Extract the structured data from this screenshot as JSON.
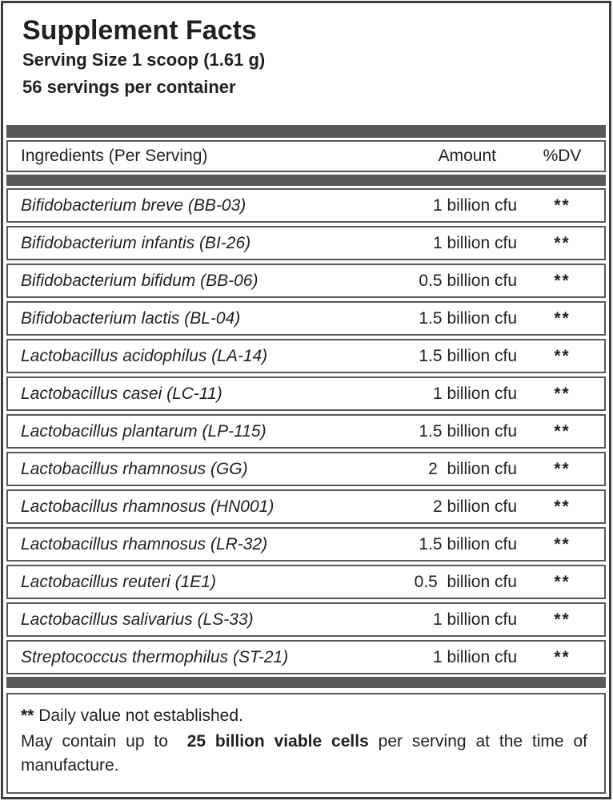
{
  "label": {
    "title": "Supplement Facts",
    "serving_size": "Serving Size 1 scoop (1.61 g)",
    "servings_per_container": "56 servings per container"
  },
  "table": {
    "headers": {
      "ingredient": "Ingredients (Per Serving)",
      "amount": "Amount",
      "dv": "%DV"
    },
    "rows": [
      {
        "name": "Bifidobacterium breve (BB-03)",
        "amount": "1 billion cfu",
        "dv": "**"
      },
      {
        "name": "Bifidobacterium infantis (BI-26)",
        "amount": "1 billion cfu",
        "dv": "**"
      },
      {
        "name": "Bifidobacterium bifidum (BB-06)",
        "amount": "0.5 billion cfu",
        "dv": "**"
      },
      {
        "name": "Bifidobacterium lactis (BL-04)",
        "amount": "1.5 billion cfu",
        "dv": "**"
      },
      {
        "name": "Lactobacillus acidophilus (LA-14)",
        "amount": "1.5 billion cfu",
        "dv": "**"
      },
      {
        "name": "Lactobacillus casei (LC-11)",
        "amount": "1 billion cfu",
        "dv": "**"
      },
      {
        "name": "Lactobacillus plantarum (LP-115)",
        "amount": "1.5 billion cfu",
        "dv": "**"
      },
      {
        "name": "Lactobacillus rhamnosus (GG)",
        "amount": "2  billion cfu",
        "dv": "**"
      },
      {
        "name": "Lactobacillus rhamnosus (HN001)",
        "amount": "2 billion cfu",
        "dv": "**"
      },
      {
        "name": "Lactobacillus rhamnosus (LR-32)",
        "amount": "1.5 billion cfu",
        "dv": "**"
      },
      {
        "name": "Lactobacillus reuteri (1E1)",
        "amount": "0.5  billion cfu",
        "dv": "**"
      },
      {
        "name": "Lactobacillus salivarius (LS-33)",
        "amount": "1 billion cfu",
        "dv": "**"
      },
      {
        "name": "Streptococcus thermophilus (ST-21)",
        "amount": "1 billion cfu",
        "dv": "**"
      }
    ]
  },
  "footnotes": {
    "dv_note_marker": "**",
    "dv_note_text": " Daily value not established.",
    "may_contain_prefix": "May contain up to  ",
    "may_contain_bold": "25 billion viable cells",
    "may_contain_suffix": " per serving at the time of manufacture."
  },
  "colors": {
    "separator_bar": "#58585a",
    "box_border": "#58585a",
    "outer_border": "#3f3f3f",
    "text": "#231f20",
    "background": "#ffffff"
  }
}
